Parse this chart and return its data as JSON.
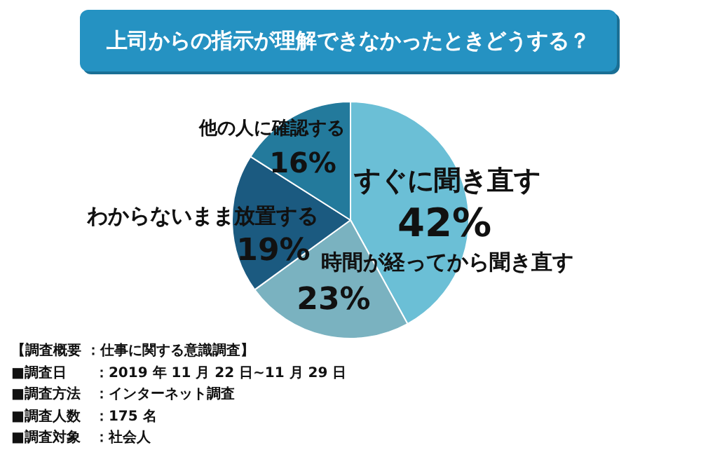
{
  "chart_data": {
    "type": "pie",
    "title": "上司からの指示が理解できなかったときどうする？",
    "categories": [
      "すぐに聞き直す",
      "時間が経ってから聞き直す",
      "わからないまま放置する",
      "他の人に確認する"
    ],
    "values": [
      42,
      23,
      19,
      16
    ],
    "colors": [
      "#6bbfd6",
      "#7ab2c0",
      "#1b5a80",
      "#237a9c"
    ],
    "value_labels": [
      "42%",
      "23%",
      "19%",
      "16%"
    ],
    "legend": false,
    "annotations": [
      "【調査概要 ：仕事に関する意識調査】",
      "■調査日　　：2019 年 11 月 22 日~11 月 29 日",
      "■調査方法　：インターネット調査",
      "■調査人数　：175 名",
      "■調査対象　：社会人"
    ]
  }
}
